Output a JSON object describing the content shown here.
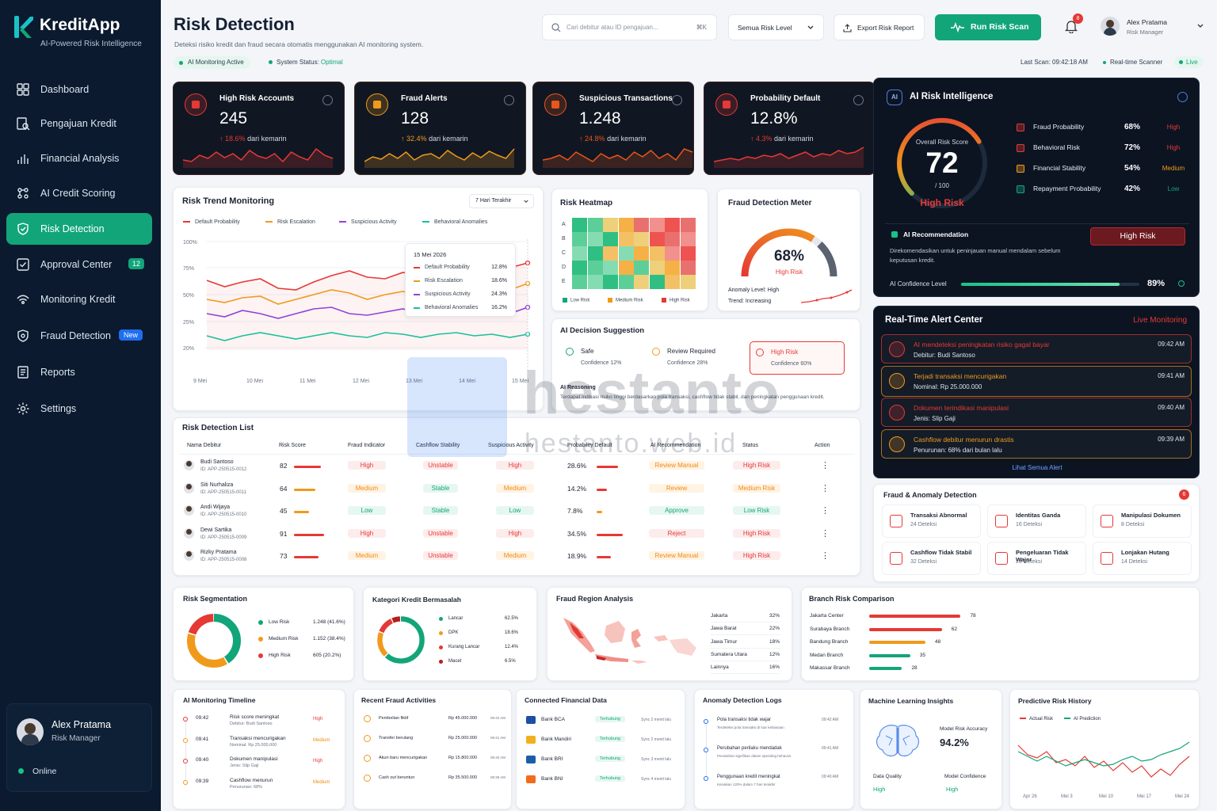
{
  "app": {
    "name": "KreditApp",
    "tagline": "AI-Powered Risk Intelligence"
  },
  "nav": [
    {
      "label": "Dashboard",
      "icon": "dashboard-icon"
    },
    {
      "label": "Pengajuan Kredit",
      "icon": "document-search-icon"
    },
    {
      "label": "Financial Analysis",
      "icon": "bar-chart-icon"
    },
    {
      "label": "AI Credit Scoring",
      "icon": "ai-scoring-icon"
    },
    {
      "label": "Risk Detection",
      "icon": "shield-icon",
      "active": true
    },
    {
      "label": "Approval Center",
      "icon": "check-square-icon",
      "badge": "12"
    },
    {
      "label": "Monitoring Kredit",
      "icon": "signal-icon"
    },
    {
      "label": "Fraud Detection",
      "icon": "fraud-shield-icon",
      "badge": "New"
    },
    {
      "label": "Reports",
      "icon": "report-icon"
    },
    {
      "label": "Settings",
      "icon": "gear-icon"
    }
  ],
  "sidebar_user": {
    "name": "Alex Pratama",
    "role": "Risk Manager",
    "status": "Online"
  },
  "header": {
    "title": "Risk Detection",
    "subtitle": "Deteksi risiko kredit dan fraud secara otomatis menggunakan AI monitoring system.",
    "monitoring_chip": "AI Monitoring Active",
    "system_status_label": "System Status:",
    "system_status_value": "Optimal",
    "search_placeholder": "Cari debitur atau ID pengajuan...",
    "search_shortcut": "⌘K",
    "risk_level_select": "Semua Risk Level",
    "export_label": "Export Risk Report",
    "scan_label": "Run Risk Scan",
    "notif_count": "8",
    "user_name": "Alex Pratama",
    "user_role": "Risk Manager",
    "last_scan": "Last Scan: 09:42:18 AM",
    "scanner": "Real-time Scanner",
    "live": "Live"
  },
  "kpis": [
    {
      "label": "High Risk Accounts",
      "value": "245",
      "delta": "18.6%",
      "delta_suffix": "dari kemarin",
      "accent": "#e53935"
    },
    {
      "label": "Fraud Alerts",
      "value": "128",
      "delta": "32.4%",
      "delta_suffix": "dari kemarin",
      "accent": "#f09a1c"
    },
    {
      "label": "Suspicious Transactions",
      "value": "1.248",
      "delta": "24.8%",
      "delta_suffix": "dari kemarin",
      "accent": "#e8561c"
    },
    {
      "label": "Probability Default",
      "value": "12.8%",
      "delta": "4.3%",
      "delta_suffix": "dari kemarin",
      "accent": "#e53935"
    }
  ],
  "ai_intel": {
    "title": "AI Risk Intelligence",
    "score_label": "Overall Risk Score",
    "score": "72",
    "score_max": "/ 100",
    "score_fraction": 0.72,
    "level": "High Risk",
    "metrics": [
      {
        "label": "Fraud Probability",
        "value": "68%",
        "level": "High",
        "color": "#e53935"
      },
      {
        "label": "Behavioral Risk",
        "value": "72%",
        "level": "High",
        "color": "#e53935"
      },
      {
        "label": "Financial Stability",
        "value": "54%",
        "level": "Medium",
        "color": "#f09a1c"
      },
      {
        "label": "Repayment Probability",
        "value": "42%",
        "level": "Low",
        "color": "#12a57a"
      }
    ],
    "rec_title": "AI Recommendation",
    "rec_badge": "High Risk",
    "rec_text": "Direkomendasikan untuk peninjauan manual mendalam sebelum keputusan kredit.",
    "confidence_label": "AI Confidence Level",
    "confidence": "89%",
    "confidence_fraction": 0.89
  },
  "trend": {
    "title": "Risk Trend Monitoring",
    "range": "7 Hari Terakhir",
    "legend": [
      {
        "name": "Default Probability",
        "color": "#e53935"
      },
      {
        "name": "Risk Escalation",
        "color": "#f09a1c"
      },
      {
        "name": "Suspicious Activity",
        "color": "#8e44d6"
      },
      {
        "name": "Behavioral Anomalies",
        "color": "#1cbf9a"
      }
    ],
    "y_ticks": [
      "100%",
      "75%",
      "50%",
      "25%",
      "20%"
    ],
    "x_ticks": [
      "9 Mei",
      "10 Mei",
      "11 Mei",
      "12 Mei",
      "13 Mei",
      "14 Mei",
      "15 Mei"
    ],
    "tooltip": {
      "date": "15 Mei 2026",
      "rows": [
        {
          "name": "Default Probability",
          "value": "12.8%"
        },
        {
          "name": "Risk Escalation",
          "value": "18.6%"
        },
        {
          "name": "Suspicious Activity",
          "value": "24.3%"
        },
        {
          "name": "Behavioral Anomalies",
          "value": "16.2%"
        }
      ]
    }
  },
  "heatmap": {
    "title": "Risk Heatmap",
    "rows": [
      "A",
      "B",
      "C",
      "D",
      "E"
    ],
    "legend": [
      "Low Risk",
      "Medium Risk",
      "High Risk"
    ],
    "levels": [
      [
        0,
        0,
        1,
        1,
        2,
        2,
        2,
        2
      ],
      [
        0,
        0,
        0,
        1,
        1,
        2,
        2,
        2
      ],
      [
        0,
        0,
        1,
        0,
        1,
        1,
        2,
        2
      ],
      [
        0,
        0,
        0,
        1,
        0,
        1,
        1,
        2
      ],
      [
        0,
        0,
        0,
        0,
        1,
        0,
        1,
        1
      ]
    ]
  },
  "meter": {
    "title": "Fraud Detection Meter",
    "value": "68%",
    "fraction": 0.68,
    "label": "High Risk",
    "anomaly": "Anomaly Level: High",
    "trend": "Trend: Increasing"
  },
  "decision": {
    "title": "AI Decision Suggestion",
    "options": [
      {
        "label": "Safe",
        "conf": "Confidence 12%",
        "color": "#12a57a"
      },
      {
        "label": "Review Required",
        "conf": "Confidence 28%",
        "color": "#f09a1c"
      },
      {
        "label": "High Risk",
        "conf": "Confidence 60%",
        "color": "#e53935"
      }
    ],
    "reasoning_title": "AI Reasoning",
    "reasoning": "Terdapat indikasi risiko tinggi berdasarkan pola transaksi, cashflow tidak stabil, dan peningkatan penggunaan kredit."
  },
  "alerts": {
    "title": "Real-Time Alert Center",
    "live": "Live Monitoring",
    "items": [
      {
        "title": "AI mendeteksi peningkatan risiko gagal bayar",
        "sub": "Debitur: Budi Santoso",
        "time": "09:42 AM",
        "color": "#e53935"
      },
      {
        "title": "Terjadi transaksi mencurigakan",
        "sub": "Nominal: Rp 25.000.000",
        "time": "09:41 AM",
        "color": "#f09a1c"
      },
      {
        "title": "Dokumen terindikasi manipulasi",
        "sub": "Jenis: Slip Gaji",
        "time": "09:40 AM",
        "color": "#e53935"
      },
      {
        "title": "Cashflow debitur menurun drastis",
        "sub": "Penurunan: 68% dari bulan lalu",
        "time": "09:39 AM",
        "color": "#f09a1c"
      }
    ],
    "view_all": "Lihat Semua Alert"
  },
  "fraud_anomaly": {
    "title": "Fraud & Anomaly Detection",
    "count": "6",
    "items": [
      {
        "label": "Transaksi Abnormal",
        "count": "24 Deteksi"
      },
      {
        "label": "Identitas Ganda",
        "count": "16 Deteksi"
      },
      {
        "label": "Manipulasi Dokumen",
        "count": "8 Deteksi"
      },
      {
        "label": "Cashflow Tidak Stabil",
        "count": "32 Deteksi"
      },
      {
        "label": "Pengeluaran Tidak Wajar",
        "count": "28 Deteksi"
      },
      {
        "label": "Lonjakan Hutang",
        "count": "14 Deteksi"
      }
    ]
  },
  "risk_list": {
    "title": "Risk Detection List",
    "columns": [
      "Nama Debitur",
      "Risk Score",
      "Fraud Indicator",
      "Cashflow Stability",
      "Suspicious Activity",
      "Probability Default",
      "AI Recommendation",
      "Status",
      "Action"
    ],
    "rows": [
      {
        "name": "Budi Santoso",
        "id": "ID: APP-250515-0012",
        "score": "82",
        "score_frac": 0.82,
        "fraud": "High",
        "cashflow": "Unstable",
        "suspicious": "High",
        "pd": "28.6%",
        "pd_frac": 0.286,
        "rec": "Review Manual",
        "status": "High Risk"
      },
      {
        "name": "Siti Nurhaliza",
        "id": "ID: APP-250515-0011",
        "score": "64",
        "score_frac": 0.64,
        "fraud": "Medium",
        "cashflow": "Stable",
        "suspicious": "Medium",
        "pd": "14.2%",
        "pd_frac": 0.142,
        "rec": "Review",
        "status": "Medium Risk"
      },
      {
        "name": "Andi Wijaya",
        "id": "ID: APP-250515-0010",
        "score": "45",
        "score_frac": 0.45,
        "fraud": "Low",
        "cashflow": "Stable",
        "suspicious": "Low",
        "pd": "7.8%",
        "pd_frac": 0.078,
        "rec": "Approve",
        "status": "Low Risk"
      },
      {
        "name": "Dewi Sartika",
        "id": "ID: APP-250515-0009",
        "score": "91",
        "score_frac": 0.91,
        "fraud": "High",
        "cashflow": "Unstable",
        "suspicious": "High",
        "pd": "34.5%",
        "pd_frac": 0.345,
        "rec": "Reject",
        "status": "High Risk"
      },
      {
        "name": "Rizky Pratama",
        "id": "ID: APP-250515-0008",
        "score": "73",
        "score_frac": 0.73,
        "fraud": "Medium",
        "cashflow": "Unstable",
        "suspicious": "Medium",
        "pd": "18.9%",
        "pd_frac": 0.189,
        "rec": "Review Manual",
        "status": "High Risk"
      }
    ]
  },
  "segmentation": {
    "title": "Risk Segmentation",
    "items": [
      {
        "label": "Low Risk",
        "value": "1.248 (41.6%)",
        "pct": 41.6,
        "color": "#12a57a"
      },
      {
        "label": "Medium Risk",
        "value": "1.152 (38.4%)",
        "pct": 38.4,
        "color": "#f09a1c"
      },
      {
        "label": "High Risk",
        "value": "605 (20.2%)",
        "pct": 20.2,
        "color": "#e53935"
      }
    ]
  },
  "kategori": {
    "title": "Kategori Kredit Bermasalah",
    "items": [
      {
        "label": "Lancar",
        "value": "62.5%",
        "pct": 62.5,
        "color": "#12a57a"
      },
      {
        "label": "DPK",
        "value": "18.6%",
        "pct": 18.6,
        "color": "#f09a1c"
      },
      {
        "label": "Kurang Lancar",
        "value": "12.4%",
        "pct": 12.4,
        "color": "#e53935"
      },
      {
        "label": "Macet",
        "value": "6.5%",
        "pct": 6.5,
        "color": "#b71c1c"
      }
    ]
  },
  "region": {
    "title": "Fraud Region Analysis",
    "items": [
      {
        "label": "Jakarta",
        "value": "32%"
      },
      {
        "label": "Jawa Barat",
        "value": "22%"
      },
      {
        "label": "Jawa Timur",
        "value": "18%"
      },
      {
        "label": "Sumatera Utara",
        "value": "12%"
      },
      {
        "label": "Lainnya",
        "value": "16%"
      }
    ]
  },
  "branch": {
    "title": "Branch Risk Comparison",
    "items": [
      {
        "label": "Jakarta Center",
        "value": 78,
        "color": "#e53935"
      },
      {
        "label": "Surabaya Branch",
        "value": 62,
        "color": "#e53935"
      },
      {
        "label": "Bandung Branch",
        "value": 48,
        "color": "#f09a1c"
      },
      {
        "label": "Medan Branch",
        "value": 35,
        "color": "#12a57a"
      },
      {
        "label": "Makassar Branch",
        "value": 28,
        "color": "#12a57a"
      }
    ]
  },
  "timeline": {
    "title": "AI Monitoring Timeline",
    "items": [
      {
        "time": "09:42",
        "title": "Risk score meningkat",
        "sub": "Debitur: Budi Santoso",
        "level": "High"
      },
      {
        "time": "09:41",
        "title": "Transaksi mencurigakan",
        "sub": "Nominal: Rp 25.000.000",
        "level": "Medium"
      },
      {
        "time": "09:40",
        "title": "Dokumen manipulasi",
        "sub": "Jenis: Slip Gaji",
        "level": "High"
      },
      {
        "time": "09:39",
        "title": "Cashflow menurun",
        "sub": "Penurunan: 68%",
        "level": "Medium"
      }
    ]
  },
  "recent_fraud": {
    "title": "Recent Fraud Activities",
    "items": [
      {
        "label": "Pembelian fiktif",
        "amount": "Rp 45.000.000",
        "time": "09:42 AM"
      },
      {
        "label": "Transfer berulang",
        "amount": "Rp 25.000.000",
        "time": "09:41 AM"
      },
      {
        "label": "Akun baru mencurigakan",
        "amount": "Rp 15.800.000",
        "time": "09:40 AM"
      },
      {
        "label": "Cash out beruntun",
        "amount": "Rp 35.500.000",
        "time": "09:39 AM"
      }
    ]
  },
  "connected": {
    "title": "Connected Financial Data",
    "items": [
      {
        "bank": "Bank BCA",
        "status": "Terhubung",
        "sync": "Sync 2 menit lalu",
        "color": "#1d4fa3"
      },
      {
        "bank": "Bank Mandiri",
        "status": "Terhubung",
        "sync": "Sync 2 menit lalu",
        "color": "#f2b01e"
      },
      {
        "bank": "Bank BRI",
        "status": "Terhubung",
        "sync": "Sync 3 menit lalu",
        "color": "#1b5ea8"
      },
      {
        "bank": "Bank BNI",
        "status": "Terhubung",
        "sync": "Sync 4 menit lalu",
        "color": "#f26b1d"
      }
    ]
  },
  "anomaly_logs": {
    "title": "Anomaly Detection Logs",
    "items": [
      {
        "title": "Pola transaksi tidak wajar",
        "sub": "Terdeteksi pola transaksi di luar kebiasaan",
        "time": "09:42 AM"
      },
      {
        "title": "Perubahan perilaku mendadak",
        "sub": "Perubahan signifikan dalam spending behavior",
        "time": "09:41 AM"
      },
      {
        "title": "Penggunaan kredit meningkat",
        "sub": "Kenaikan 120% dalam 7 hari terakhir",
        "time": "09:40 AM"
      }
    ]
  },
  "ml": {
    "title": "Machine Learning Insights",
    "acc_label": "Model Risk Accuracy",
    "acc": "94.2%",
    "dq_label": "Data Quality",
    "dq": "High",
    "mc_label": "Model Confidence",
    "mc": "High"
  },
  "predictive": {
    "title": "Predictive Risk History",
    "legend": [
      "Actual Risk",
      "AI Prediction"
    ],
    "x_ticks": [
      "Apr 26",
      "Mei 3",
      "Mei 10",
      "Mei 17",
      "Mei 24"
    ]
  },
  "watermark": {
    "main": "hestanto",
    "sub": "hestanto.web.id"
  }
}
